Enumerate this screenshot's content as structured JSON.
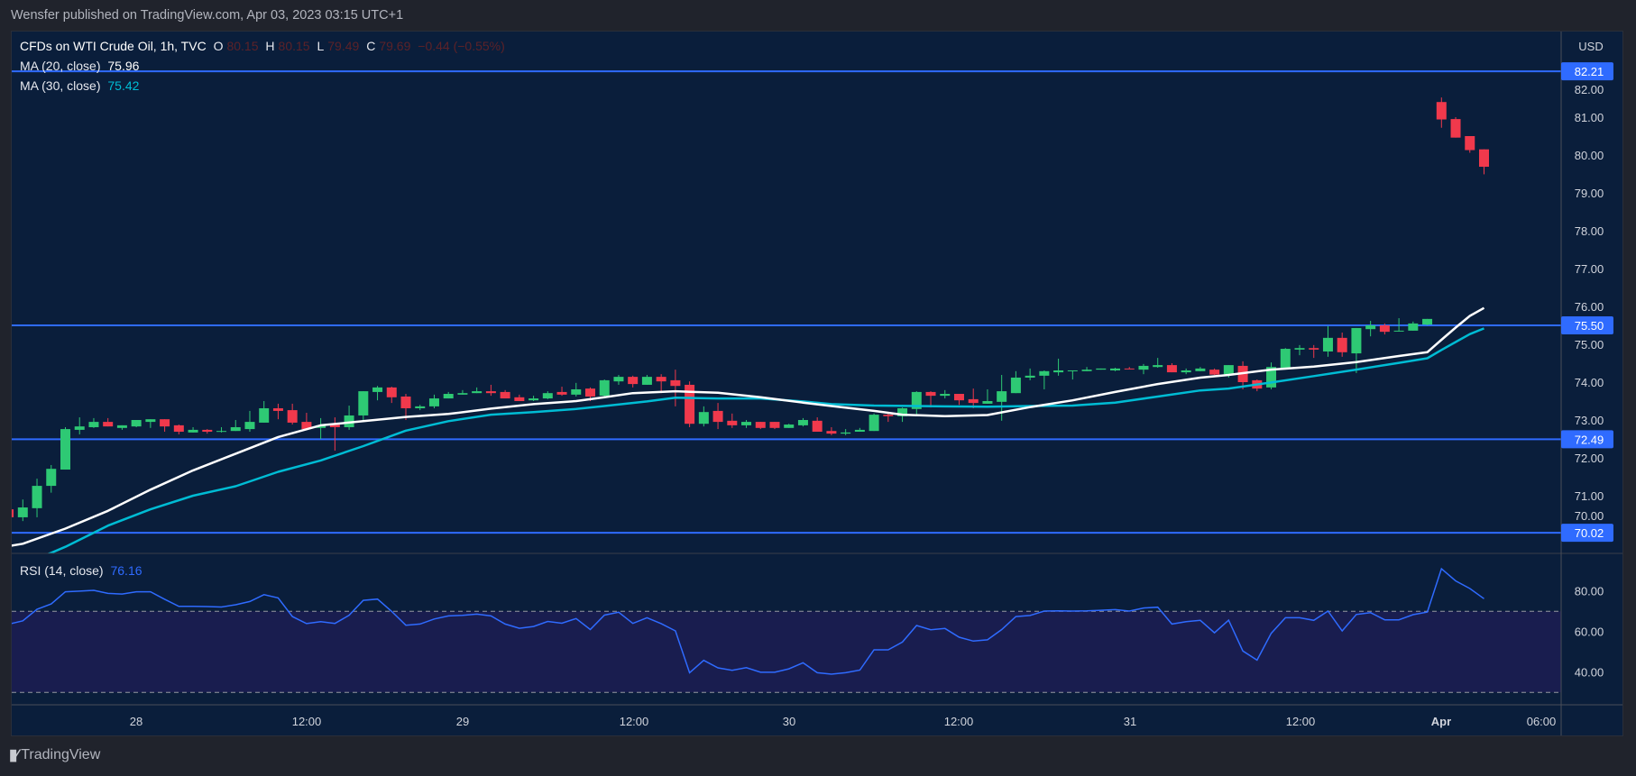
{
  "header": {
    "published": "Wensfer published on TradingView.com, Apr 03, 2023 03:15 UTC+1"
  },
  "legend": {
    "symbol": "CFDs on WTI Crude Oil, 1h, TVC",
    "o_label": "O",
    "o": "80.15",
    "h_label": "H",
    "h": "80.15",
    "l_label": "L",
    "l": "79.49",
    "c_label": "C",
    "c": "79.69",
    "change": "−0.44 (−0.55%)",
    "ma20_label": "MA (20, close)",
    "ma20_value": "75.96",
    "ma30_label": "MA (30, close)",
    "ma30_value": "75.42",
    "rsi_label": "RSI (14, close)",
    "rsi_value": "76.16"
  },
  "footer": {
    "logo": "17",
    "brand": "TradingView"
  },
  "colors": {
    "up": "#2ec974",
    "down": "#f0394c",
    "ma20": "#ffffff",
    "ma30": "#00bcd4",
    "level": "#2f6bff",
    "rsi": "#2f6bff",
    "rsi_band": "#191d4f",
    "background": "#0a1e3b"
  },
  "chart_data": {
    "type": "candlestick",
    "currency": "USD",
    "price_ticks": [
      "82.00",
      "81.00",
      "80.00",
      "79.00",
      "78.00",
      "77.00",
      "76.00",
      "75.00",
      "74.00",
      "73.00",
      "72.00",
      "71.00",
      "70.00"
    ],
    "levels": [
      "82.21",
      "75.50",
      "72.49",
      "70.02"
    ],
    "time_labels": [
      "28",
      "12:00",
      "29",
      "12:00",
      "30",
      "12:00",
      "31",
      "12:00",
      "Apr",
      "06:00"
    ],
    "candles_ohlc": [
      [
        70.64,
        70.66,
        70.43,
        70.43
      ],
      [
        70.43,
        70.9,
        70.33,
        70.69
      ],
      [
        70.67,
        71.45,
        70.43,
        71.26
      ],
      [
        71.26,
        71.81,
        71.08,
        71.71
      ],
      [
        71.69,
        72.81,
        71.69,
        72.76
      ],
      [
        72.74,
        73.07,
        72.62,
        72.83
      ],
      [
        72.81,
        73.05,
        72.79,
        72.95
      ],
      [
        72.95,
        73.05,
        72.83,
        72.83
      ],
      [
        72.79,
        72.86,
        72.74,
        72.86
      ],
      [
        72.83,
        73.0,
        72.81,
        73.0
      ],
      [
        72.95,
        73.02,
        72.79,
        73.02
      ],
      [
        73.02,
        73.02,
        72.69,
        72.83
      ],
      [
        72.86,
        72.88,
        72.62,
        72.69
      ],
      [
        72.67,
        72.81,
        72.67,
        72.74
      ],
      [
        72.74,
        72.76,
        72.64,
        72.69
      ],
      [
        72.69,
        72.81,
        72.67,
        72.71
      ],
      [
        72.71,
        73.0,
        72.71,
        72.81
      ],
      [
        72.76,
        73.24,
        72.69,
        72.95
      ],
      [
        72.93,
        73.5,
        72.93,
        73.31
      ],
      [
        73.31,
        73.43,
        73.02,
        73.24
      ],
      [
        73.26,
        73.43,
        72.88,
        72.93
      ],
      [
        72.95,
        73.19,
        72.76,
        72.76
      ],
      [
        72.79,
        73.05,
        72.5,
        72.86
      ],
      [
        72.88,
        73.07,
        72.19,
        72.81
      ],
      [
        72.81,
        73.38,
        72.74,
        73.12
      ],
      [
        73.12,
        73.76,
        72.98,
        73.76
      ],
      [
        73.74,
        73.9,
        73.52,
        73.86
      ],
      [
        73.86,
        73.88,
        73.45,
        73.6
      ],
      [
        73.62,
        73.69,
        73.0,
        73.31
      ],
      [
        73.31,
        73.4,
        73.26,
        73.36
      ],
      [
        73.36,
        73.67,
        73.31,
        73.57
      ],
      [
        73.57,
        73.74,
        73.57,
        73.69
      ],
      [
        73.67,
        73.79,
        73.67,
        73.71
      ],
      [
        73.71,
        73.86,
        73.71,
        73.76
      ],
      [
        73.76,
        73.93,
        73.64,
        73.71
      ],
      [
        73.74,
        73.79,
        73.57,
        73.57
      ],
      [
        73.6,
        73.67,
        73.5,
        73.5
      ],
      [
        73.52,
        73.64,
        73.5,
        73.57
      ],
      [
        73.57,
        73.76,
        73.55,
        73.71
      ],
      [
        73.74,
        73.88,
        73.64,
        73.67
      ],
      [
        73.67,
        73.98,
        73.62,
        73.81
      ],
      [
        73.83,
        73.86,
        73.5,
        73.62
      ],
      [
        73.64,
        74.07,
        73.57,
        74.05
      ],
      [
        74.02,
        74.19,
        73.93,
        74.14
      ],
      [
        74.14,
        74.17,
        73.86,
        73.95
      ],
      [
        73.93,
        74.19,
        73.93,
        74.14
      ],
      [
        74.14,
        74.21,
        73.71,
        74.02
      ],
      [
        74.05,
        74.33,
        73.36,
        73.9
      ],
      [
        73.93,
        74.02,
        72.81,
        72.9
      ],
      [
        72.9,
        73.36,
        72.83,
        73.21
      ],
      [
        73.24,
        73.45,
        72.76,
        72.95
      ],
      [
        72.98,
        73.17,
        72.79,
        72.86
      ],
      [
        72.86,
        73.0,
        72.79,
        72.95
      ],
      [
        72.95,
        72.95,
        72.76,
        72.79
      ],
      [
        72.95,
        72.95,
        72.76,
        72.79
      ],
      [
        72.79,
        72.9,
        72.79,
        72.88
      ],
      [
        72.86,
        73.05,
        72.83,
        73.0
      ],
      [
        72.98,
        73.07,
        72.69,
        72.69
      ],
      [
        72.71,
        72.81,
        72.6,
        72.64
      ],
      [
        72.64,
        72.76,
        72.6,
        72.67
      ],
      [
        72.69,
        72.79,
        72.69,
        72.74
      ],
      [
        72.71,
        73.17,
        72.71,
        73.14
      ],
      [
        73.14,
        73.19,
        72.95,
        73.1
      ],
      [
        73.1,
        73.33,
        72.95,
        73.31
      ],
      [
        73.29,
        73.76,
        73.14,
        73.74
      ],
      [
        73.74,
        73.76,
        73.33,
        73.64
      ],
      [
        73.64,
        73.79,
        73.57,
        73.69
      ],
      [
        73.69,
        73.69,
        73.4,
        73.52
      ],
      [
        73.55,
        73.83,
        73.31,
        73.45
      ],
      [
        73.43,
        73.81,
        73.43,
        73.5
      ],
      [
        73.48,
        74.19,
        72.98,
        73.76
      ],
      [
        73.71,
        74.29,
        73.71,
        74.12
      ],
      [
        74.12,
        74.36,
        74.05,
        74.17
      ],
      [
        74.17,
        74.31,
        73.81,
        74.29
      ],
      [
        74.26,
        74.62,
        74.17,
        74.31
      ],
      [
        74.29,
        74.31,
        74.07,
        74.31
      ],
      [
        74.29,
        74.4,
        74.29,
        74.33
      ],
      [
        74.33,
        74.36,
        74.33,
        74.36
      ],
      [
        74.31,
        74.38,
        74.29,
        74.36
      ],
      [
        74.36,
        74.4,
        74.34,
        74.34
      ],
      [
        74.33,
        74.48,
        74.21,
        74.43
      ],
      [
        74.4,
        74.64,
        74.38,
        74.45
      ],
      [
        74.45,
        74.5,
        74.26,
        74.26
      ],
      [
        74.26,
        74.36,
        74.21,
        74.31
      ],
      [
        74.29,
        74.4,
        74.29,
        74.36
      ],
      [
        74.33,
        74.36,
        74.19,
        74.2
      ],
      [
        74.21,
        74.45,
        74.12,
        74.45
      ],
      [
        74.43,
        74.55,
        73.81,
        74.0
      ],
      [
        74.05,
        74.07,
        73.76,
        73.83
      ],
      [
        73.86,
        74.52,
        73.81,
        74.4
      ],
      [
        74.38,
        74.9,
        74.38,
        74.88
      ],
      [
        74.86,
        74.98,
        74.71,
        74.9
      ],
      [
        74.9,
        74.98,
        74.64,
        74.86
      ],
      [
        74.81,
        75.48,
        74.67,
        75.17
      ],
      [
        75.17,
        75.31,
        74.67,
        74.79
      ],
      [
        74.76,
        75.43,
        74.24,
        75.43
      ],
      [
        75.4,
        75.62,
        75.21,
        75.5
      ],
      [
        75.5,
        75.55,
        75.26,
        75.33
      ],
      [
        75.35,
        75.69,
        75.34,
        75.36
      ],
      [
        75.36,
        75.6,
        75.36,
        75.55
      ],
      [
        75.52,
        75.67,
        75.5,
        75.67
      ],
      [
        81.4,
        81.52,
        80.72,
        80.94
      ],
      [
        80.95,
        81.0,
        80.46,
        80.46
      ],
      [
        80.5,
        80.5,
        80.06,
        80.13
      ],
      [
        80.15,
        80.15,
        79.49,
        79.69
      ]
    ],
    "ma20": [
      [
        0,
        69.67
      ],
      [
        1,
        69.73
      ],
      [
        4,
        70.13
      ],
      [
        7,
        70.6
      ],
      [
        10,
        71.16
      ],
      [
        13,
        71.67
      ],
      [
        16,
        72.11
      ],
      [
        19,
        72.55
      ],
      [
        22,
        72.86
      ],
      [
        25,
        72.97
      ],
      [
        28,
        73.08
      ],
      [
        31,
        73.16
      ],
      [
        34,
        73.3
      ],
      [
        37,
        73.42
      ],
      [
        40,
        73.5
      ],
      [
        42,
        73.6
      ],
      [
        44,
        73.71
      ],
      [
        47,
        73.76
      ],
      [
        50,
        73.72
      ],
      [
        53,
        73.6
      ],
      [
        56,
        73.46
      ],
      [
        58,
        73.37
      ],
      [
        61,
        73.24
      ],
      [
        63,
        73.14
      ],
      [
        66,
        73.1
      ],
      [
        69,
        73.13
      ],
      [
        72,
        73.34
      ],
      [
        75,
        73.52
      ],
      [
        78,
        73.74
      ],
      [
        81,
        73.95
      ],
      [
        84,
        74.12
      ],
      [
        86,
        74.19
      ],
      [
        89,
        74.33
      ],
      [
        92,
        74.41
      ],
      [
        95,
        74.53
      ],
      [
        98,
        74.69
      ],
      [
        100,
        74.79
      ],
      [
        101,
        75.12
      ],
      [
        102,
        75.44
      ],
      [
        103,
        75.75
      ],
      [
        104,
        75.96
      ]
    ],
    "ma30": [
      [
        0,
        69.1
      ],
      [
        1,
        69.22
      ],
      [
        2,
        69.35
      ],
      [
        3,
        69.49
      ],
      [
        4,
        69.65
      ],
      [
        7,
        70.21
      ],
      [
        10,
        70.64
      ],
      [
        13,
        71.0
      ],
      [
        16,
        71.25
      ],
      [
        19,
        71.63
      ],
      [
        22,
        71.93
      ],
      [
        25,
        72.31
      ],
      [
        28,
        72.72
      ],
      [
        31,
        72.97
      ],
      [
        34,
        73.14
      ],
      [
        37,
        73.21
      ],
      [
        40,
        73.29
      ],
      [
        42,
        73.37
      ],
      [
        45,
        73.49
      ],
      [
        47,
        73.59
      ],
      [
        50,
        73.57
      ],
      [
        53,
        73.57
      ],
      [
        56,
        73.49
      ],
      [
        58,
        73.42
      ],
      [
        61,
        73.38
      ],
      [
        66,
        73.36
      ],
      [
        69,
        73.35
      ],
      [
        72,
        73.37
      ],
      [
        75,
        73.38
      ],
      [
        78,
        73.46
      ],
      [
        81,
        73.62
      ],
      [
        84,
        73.78
      ],
      [
        86,
        73.83
      ],
      [
        89,
        73.99
      ],
      [
        92,
        74.16
      ],
      [
        95,
        74.33
      ],
      [
        98,
        74.51
      ],
      [
        100,
        74.63
      ],
      [
        101,
        74.85
      ],
      [
        102,
        75.06
      ],
      [
        103,
        75.27
      ],
      [
        104,
        75.42
      ]
    ],
    "rsi": {
      "ticks": [
        "80.00",
        "60.00",
        "40.00"
      ],
      "upper_band": 70,
      "lower_band": 30,
      "values": [
        63.6,
        65.3,
        71.0,
        73.6,
        79.6,
        79.9,
        80.3,
        78.8,
        78.5,
        79.6,
        79.6,
        75.9,
        72.4,
        72.4,
        72.3,
        72.1,
        73.2,
        74.8,
        78.2,
        76.6,
        67.4,
        63.9,
        64.9,
        64.0,
        68.0,
        75.4,
        76.0,
        69.9,
        63.1,
        63.7,
        66.2,
        67.7,
        68.0,
        68.6,
        67.7,
        63.7,
        61.6,
        62.5,
        65.0,
        64.1,
        66.4,
        61.0,
        68.1,
        69.5,
        64.0,
        66.8,
        63.9,
        60.3,
        39.7,
        45.8,
        42.1,
        40.9,
        42.2,
        39.9,
        39.9,
        41.6,
        44.6,
        39.7,
        39.0,
        39.7,
        41.0,
        51.0,
        51.0,
        54.8,
        63.0,
        60.9,
        61.5,
        57.2,
        55.3,
        55.9,
        61.0,
        67.4,
        67.9,
        70.1,
        70.2,
        70.1,
        70.2,
        70.5,
        70.8,
        70.1,
        71.6,
        72.0,
        63.7,
        64.9,
        65.5,
        59.4,
        65.6,
        50.4,
        45.9,
        59.1,
        66.8,
        66.8,
        65.5,
        70.1,
        60.3,
        68.4,
        69.3,
        65.8,
        65.8,
        68.3,
        69.6,
        91.0,
        85.0,
        81.2,
        76.16
      ]
    }
  }
}
